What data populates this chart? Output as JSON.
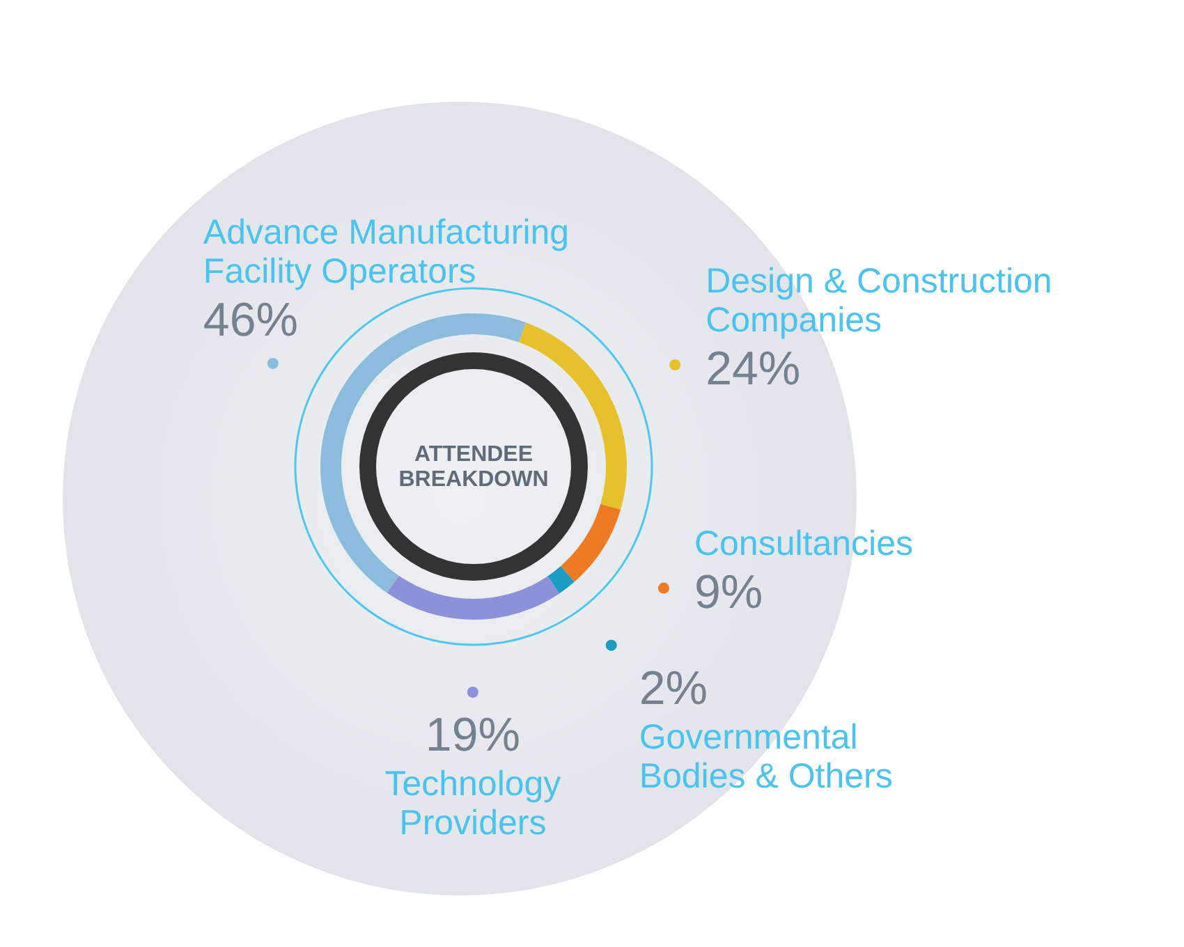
{
  "chart_data": {
    "type": "donut",
    "title": "ATTENDEE BREAKDOWN",
    "categories": [
      "Advance Manufacturing Facility Operators",
      "Design & Construction Companies",
      "Consultancies",
      "Governmental Bodies & Others",
      "Technology Providers"
    ],
    "values": [
      46,
      24,
      9,
      2,
      19
    ],
    "colors": [
      "#8cbcdc",
      "#e6c12c",
      "#ee7b24",
      "#1b9cc2",
      "#8d91d8"
    ],
    "value_labels": [
      "46%",
      "24%",
      "9%",
      "2%",
      "19%"
    ]
  }
}
